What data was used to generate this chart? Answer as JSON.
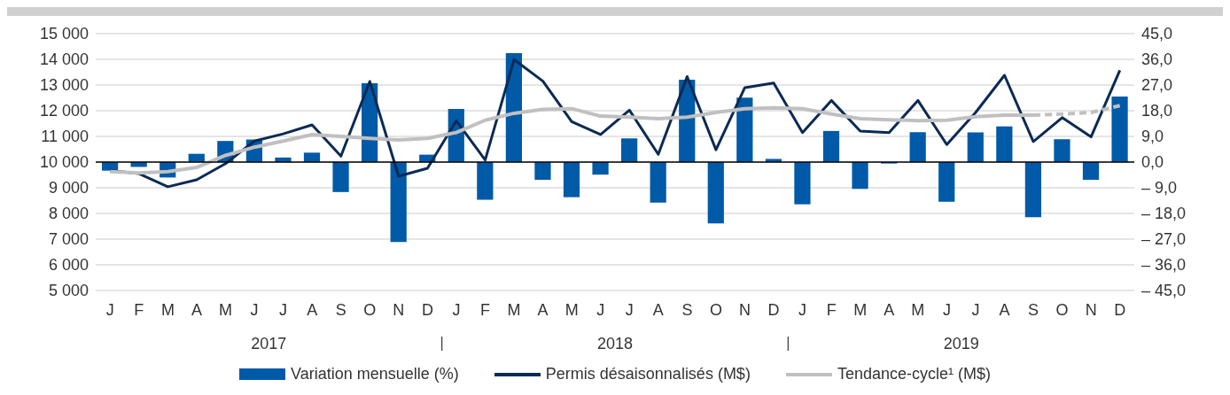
{
  "chart_data": {
    "type": "bar",
    "categories": [
      "J",
      "F",
      "M",
      "A",
      "M",
      "J",
      "J",
      "A",
      "S",
      "O",
      "N",
      "D",
      "J",
      "F",
      "M",
      "A",
      "M",
      "J",
      "J",
      "A",
      "S",
      "O",
      "N",
      "D",
      "J",
      "F",
      "M",
      "A",
      "M",
      "J",
      "J",
      "A",
      "S",
      "O",
      "N",
      "D"
    ],
    "annotations": [
      "2017",
      "2018",
      "2019"
    ],
    "series": [
      {
        "name": "Variation mensuelle (%)",
        "axis": "y2",
        "color": "#005aa7",
        "values": [
          -3.0,
          -1.7,
          -5.4,
          2.9,
          7.4,
          7.9,
          1.6,
          3.3,
          -10.5,
          27.6,
          -28.0,
          2.6,
          18.6,
          -13.2,
          38.2,
          -6.2,
          -12.3,
          -4.4,
          8.3,
          -14.2,
          28.9,
          -21.5,
          22.6,
          1.1,
          -14.8,
          10.9,
          -9.4,
          -0.5,
          10.5,
          -13.9,
          10.4,
          12.5,
          -19.3,
          8.0,
          -6.2,
          23.0
        ]
      },
      {
        "name": "Permis désaisonnalisés (M$)",
        "type": "line",
        "color": "#0b2a55",
        "values": [
          9670,
          9550,
          9040,
          9310,
          9940,
          10820,
          11100,
          11450,
          10230,
          13140,
          9450,
          9760,
          11610,
          10080,
          13990,
          13150,
          11570,
          11070,
          12020,
          10300,
          13330,
          10480,
          12900,
          13080,
          11150,
          12400,
          11210,
          11150,
          12400,
          10680,
          11930,
          13380,
          10800,
          11730,
          10980,
          13570
        ]
      },
      {
        "name": "Tendance-cycle¹ (M$)",
        "type": "line",
        "color": "#c0c0c0",
        "values": [
          9630,
          9580,
          9630,
          9790,
          10260,
          10580,
          10820,
          11070,
          11000,
          10920,
          10860,
          10920,
          11150,
          11630,
          11900,
          12050,
          12080,
          11790,
          11750,
          11690,
          11750,
          11930,
          12080,
          12110,
          12080,
          11870,
          11690,
          11650,
          11610,
          11630,
          11770,
          11830,
          11830,
          null,
          null,
          null
        ]
      },
      {
        "type": "line",
        "color": "#c0c0c0",
        "line_style": "dashed",
        "values": [
          null,
          null,
          null,
          null,
          null,
          null,
          null,
          null,
          null,
          null,
          null,
          null,
          null,
          null,
          null,
          null,
          null,
          null,
          null,
          null,
          null,
          null,
          null,
          null,
          null,
          null,
          null,
          null,
          null,
          null,
          null,
          null,
          11830,
          11870,
          11930,
          12200
        ]
      }
    ],
    "ylim": [
      5000,
      15000
    ],
    "yticks": [
      {
        "value": 5000,
        "label": "5 000"
      },
      {
        "value": 6000,
        "label": "6 000"
      },
      {
        "value": 7000,
        "label": "7 000"
      },
      {
        "value": 8000,
        "label": "8 000"
      },
      {
        "value": 9000,
        "label": "9 000"
      },
      {
        "value": 10000,
        "label": "10 000"
      },
      {
        "value": 11000,
        "label": "11 000"
      },
      {
        "value": 12000,
        "label": "12 000"
      },
      {
        "value": 13000,
        "label": "13 000"
      },
      {
        "value": 14000,
        "label": "14 000"
      },
      {
        "value": 15000,
        "label": "15 000"
      }
    ],
    "y2lim": [
      -45,
      45
    ],
    "y2ticks": [
      {
        "value": -45,
        "label": "– 45,0"
      },
      {
        "value": -36,
        "label": "– 36,0"
      },
      {
        "value": -27,
        "label": "– 27,0"
      },
      {
        "value": -18,
        "label": "– 18,0"
      },
      {
        "value": -9,
        "label": "– 9,0"
      },
      {
        "value": 0,
        "label": "0,0"
      },
      {
        "value": 9,
        "label": "9,0"
      },
      {
        "value": 18,
        "label": "18,0"
      },
      {
        "value": 27,
        "label": "27,0"
      },
      {
        "value": 36,
        "label": "36,0"
      },
      {
        "value": 45,
        "label": "45,0"
      }
    ],
    "grid": "y",
    "legend": "bottom",
    "marker": "none"
  }
}
